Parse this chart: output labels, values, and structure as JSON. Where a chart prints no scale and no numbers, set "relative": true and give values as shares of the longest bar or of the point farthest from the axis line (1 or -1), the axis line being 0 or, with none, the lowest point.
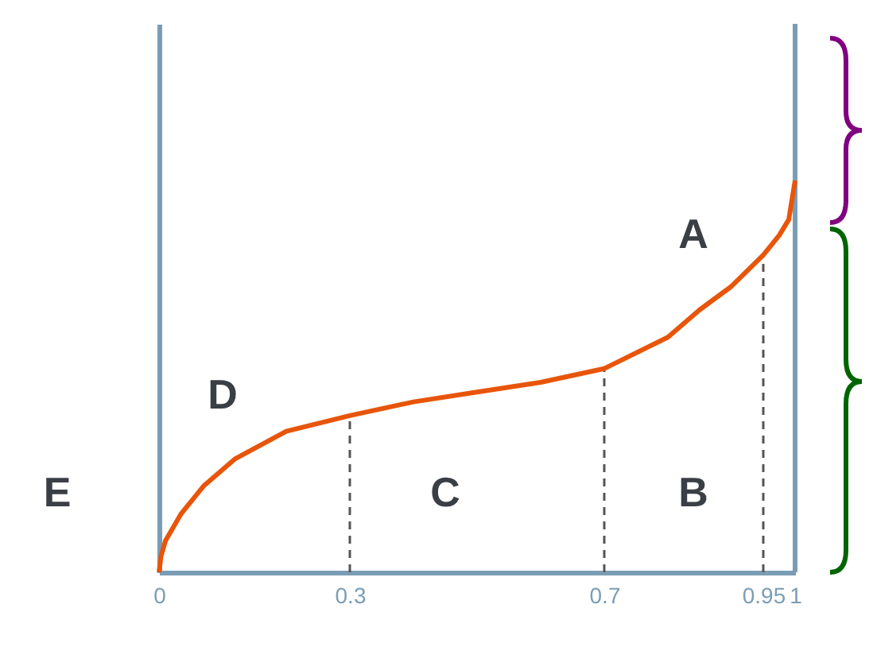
{
  "chart_data": {
    "type": "line",
    "relative": true,
    "x": [
      0,
      0.003,
      0.01,
      0.035,
      0.07,
      0.12,
      0.2,
      0.3,
      0.4,
      0.5,
      0.6,
      0.7,
      0.8,
      0.85,
      0.9,
      0.95,
      0.975,
      0.99,
      1
    ],
    "series": [
      {
        "color": "#e8550a",
        "values": [
          0,
          0.04,
          0.08,
          0.15,
          0.22,
          0.29,
          0.36,
          0.4,
          0.435,
          0.46,
          0.485,
          0.52,
          0.6,
          0.67,
          0.73,
          0.81,
          0.86,
          0.9,
          1
        ]
      }
    ],
    "xlim": [
      0,
      1
    ],
    "xticks": [
      0,
      0.3,
      0.7,
      0.95,
      1
    ],
    "ref_lines": [
      {
        "axis": "x",
        "value": 0.3,
        "line_style": "dashed",
        "color": "#555555"
      },
      {
        "axis": "x",
        "value": 0.7,
        "line_style": "dashed",
        "color": "#555555"
      },
      {
        "axis": "x",
        "value": 0.95,
        "line_style": "dashed",
        "color": "#555555"
      },
      {
        "axis": "x",
        "value": 1,
        "line_style": "solid",
        "color": "#7a9db5"
      }
    ],
    "annotations": [
      "A",
      "B",
      "C",
      "D",
      "E"
    ],
    "grid": false,
    "marker": "none",
    "line_style": "solid"
  }
}
